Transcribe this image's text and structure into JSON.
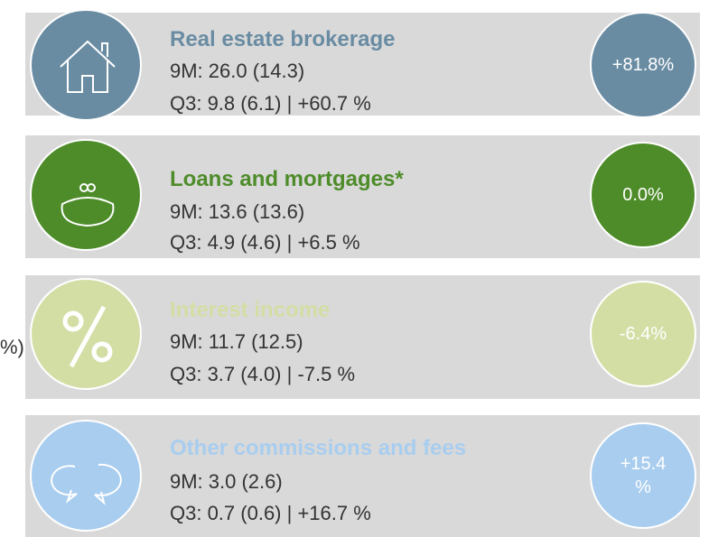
{
  "cut_off_text": "%)",
  "segments": [
    {
      "title": "Real estate brokerage",
      "line1": "9M: 26.0 (14.3)",
      "line2": "Q3: 9.8 (6.1) | +60.7 %",
      "badge": [
        "+81.8%"
      ],
      "color": "#6a8ca3",
      "icon": "house"
    },
    {
      "title": "Loans and mortgages*",
      "line1": "9M: 13.6 (13.6)",
      "line2": "Q3: 4.9 (4.6) | +6.5 %",
      "badge": [
        "0.0%"
      ],
      "color": "#4e8c2a",
      "icon": "purse"
    },
    {
      "title": "Interest income",
      "line1": "9M: 11.7 (12.5)",
      "line2": "Q3: 3.7 (4.0) | -7.5 %",
      "badge": [
        "-6.4%"
      ],
      "color": "#d3dea5",
      "icon": "percent"
    },
    {
      "title": "Other commissions and fees",
      "line1": "9M: 3.0 (2.6)",
      "line2": "Q3: 0.7 (0.6) | +16.7 %",
      "badge": [
        "+15.4",
        "%"
      ],
      "color": "#a9cdef",
      "icon": "bubbles"
    }
  ]
}
